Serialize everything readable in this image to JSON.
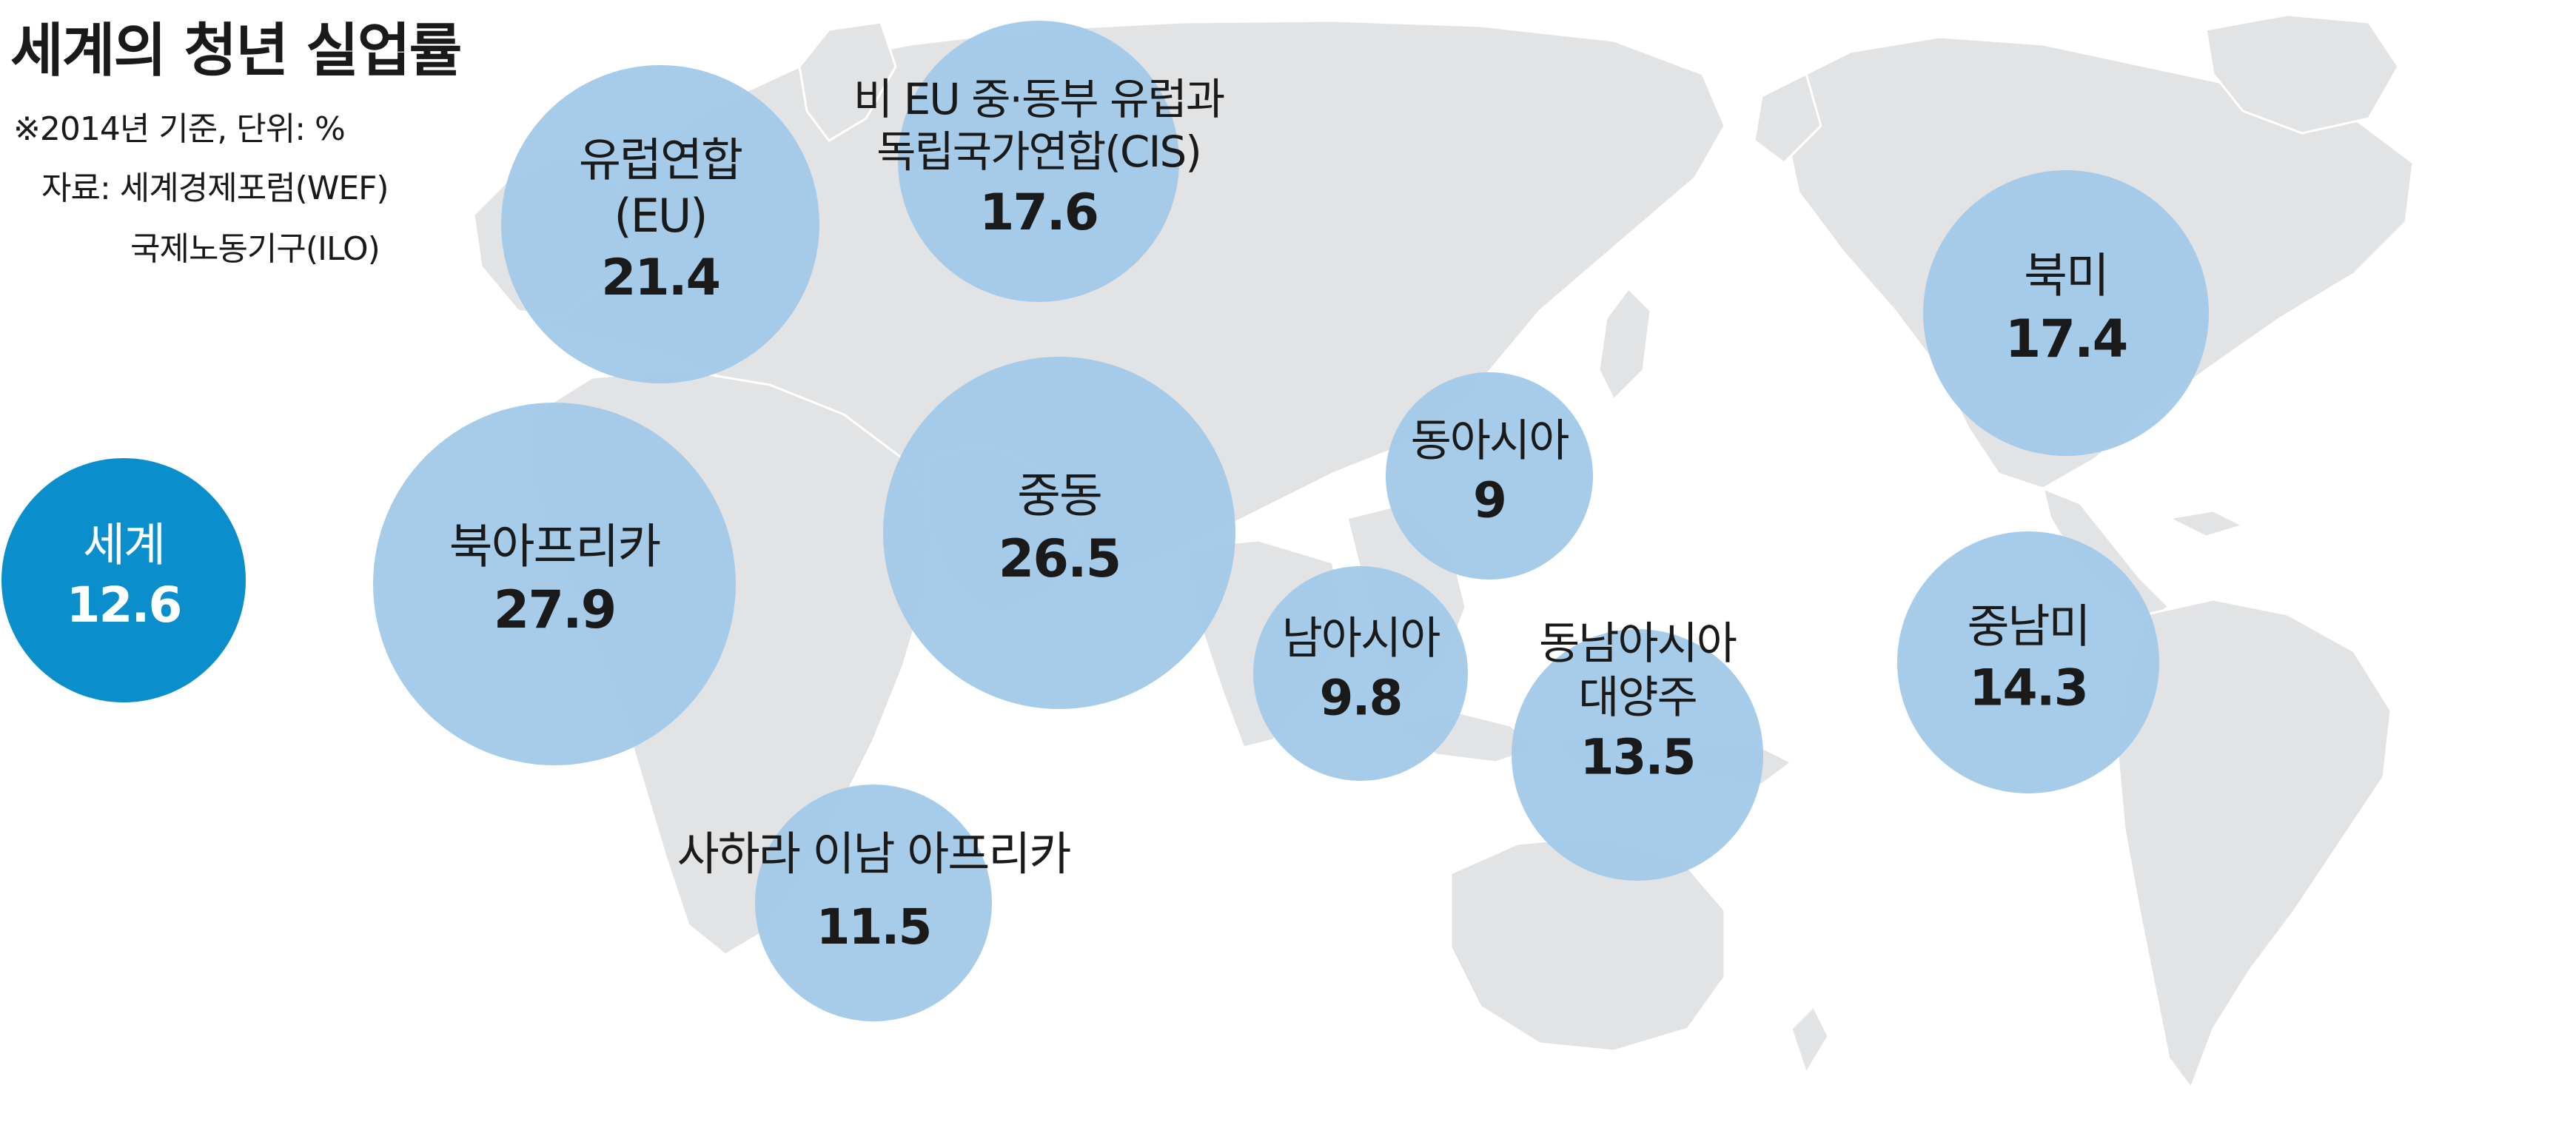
{
  "title": "세계의 청년 실업률",
  "notes": {
    "basis": "※2014년 기준, 단위: %",
    "source_line1": "자료: 세계경제포럼(WEF)",
    "source_line2": "국제노동기구(ILO)"
  },
  "colors": {
    "bubble": "#a3cae8",
    "world_bubble": "#0a8fcc",
    "land": "#e2e3e5",
    "text": "#1a1a1a",
    "world_text": "#ffffff"
  },
  "chart_data": {
    "type": "bubble-map",
    "title": "세계의 청년 실업률",
    "unit": "%",
    "series": [
      {
        "id": "world",
        "lines": [
          "세계"
        ],
        "value": 12.6,
        "label": "12.6"
      },
      {
        "id": "eu",
        "lines": [
          "유럽연합",
          "(EU)"
        ],
        "value": 21.4,
        "label": "21.4"
      },
      {
        "id": "cis",
        "lines": [
          "비 EU 중·동부 유럽과",
          "독립국가연합(CIS)"
        ],
        "value": 17.6,
        "label": "17.6"
      },
      {
        "id": "north-africa",
        "lines": [
          "북아프리카"
        ],
        "value": 27.9,
        "label": "27.9"
      },
      {
        "id": "middle-east",
        "lines": [
          "중동"
        ],
        "value": 26.5,
        "label": "26.5"
      },
      {
        "id": "sub-saharan-africa",
        "lines": [
          "사하라 이남 아프리카"
        ],
        "value": 11.5,
        "label": "11.5"
      },
      {
        "id": "east-asia",
        "lines": [
          "동아시아"
        ],
        "value": 9,
        "label": "9"
      },
      {
        "id": "south-asia",
        "lines": [
          "남아시아"
        ],
        "value": 9.8,
        "label": "9.8"
      },
      {
        "id": "southeast-asia-pacific",
        "lines": [
          "동남아시아",
          "대양주"
        ],
        "value": 13.5,
        "label": "13.5"
      },
      {
        "id": "north-america",
        "lines": [
          "북미"
        ],
        "value": 17.4,
        "label": "17.4"
      },
      {
        "id": "latin-america",
        "lines": [
          "중남미"
        ],
        "value": 14.3,
        "label": "14.3"
      }
    ]
  }
}
